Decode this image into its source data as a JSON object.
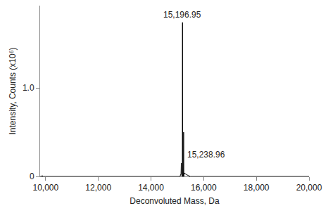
{
  "chart_data": {
    "type": "line",
    "x_label": "Deconvoluted Mass, Da",
    "y_label": "Intensity, Counts (x10⁶)",
    "x": [
      9790,
      9850,
      9870,
      9890,
      15100,
      15140,
      15150,
      15160,
      15190,
      15196.95,
      15205,
      15232,
      15238.96,
      15246,
      15260,
      15300,
      15350,
      15420,
      15500,
      20000
    ],
    "values": [
      0,
      0,
      0.01,
      0,
      0,
      0.03,
      0.15,
      0.02,
      0,
      1.74,
      0,
      0,
      0.5,
      0,
      0.04,
      0.03,
      0.02,
      0.01,
      0,
      0
    ],
    "color": "#000000",
    "xlim": [
      9790,
      20000
    ],
    "xticks": [
      {
        "value": 10000,
        "label": "10,000"
      },
      {
        "value": 12000,
        "label": "12,000"
      },
      {
        "value": 14000,
        "label": "14,000"
      },
      {
        "value": 16000,
        "label": "16,000"
      },
      {
        "value": 18000,
        "label": "18,000"
      },
      {
        "value": 20000,
        "label": "20,000"
      }
    ],
    "ylim": [
      0,
      1.93
    ],
    "yticks": [
      0,
      {
        "value": 1,
        "label": "1.0"
      }
    ],
    "grid": false,
    "annotations": [
      {
        "x": 15196.95,
        "label": "15,196.95"
      },
      {
        "x": 15238.96,
        "label": "15,238.96"
      }
    ]
  }
}
